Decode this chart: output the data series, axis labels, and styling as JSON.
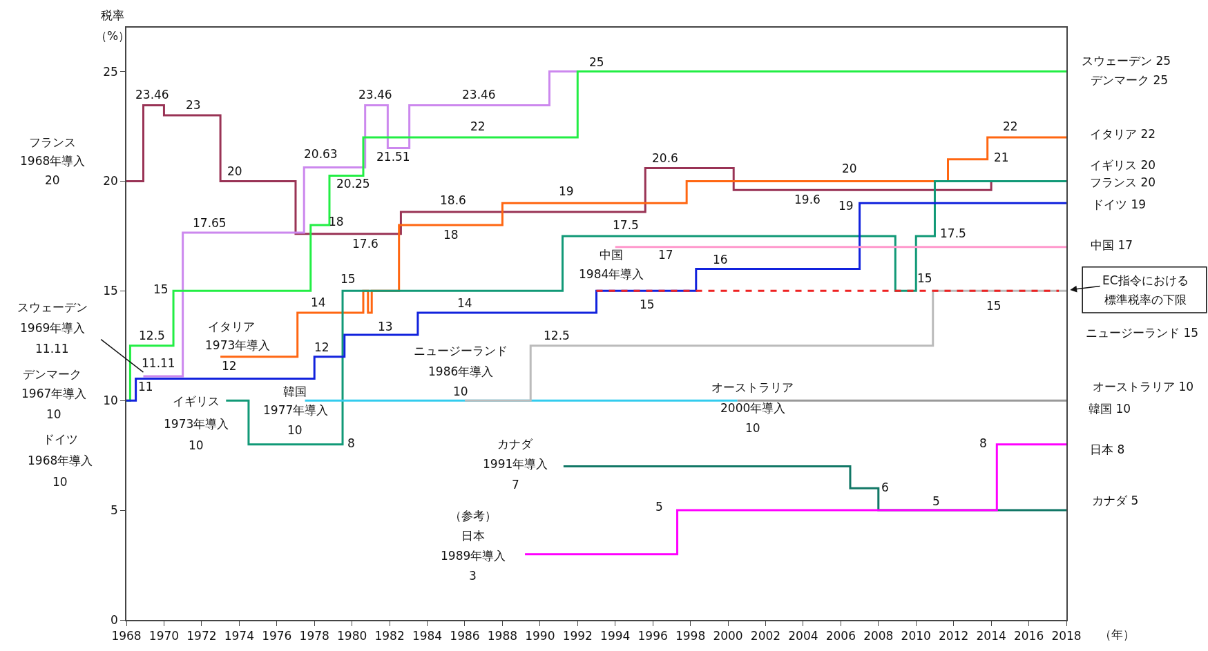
{
  "chart_data": {
    "type": "step",
    "ylabel": "税率",
    "xlabel": "（年）",
    "xlim": [
      1968,
      2018
    ],
    "ylim": [
      0,
      27
    ],
    "xticks": [
      1968,
      1970,
      1972,
      1974,
      1976,
      1978,
      1980,
      1982,
      1984,
      1986,
      1988,
      1990,
      1992,
      1994,
      1996,
      1998,
      2000,
      2002,
      2004,
      2006,
      2008,
      2010,
      2012,
      2014,
      2016,
      2018
    ],
    "yticks": [
      0,
      5,
      10,
      15,
      20,
      25
    ],
    "marker": "none",
    "series": [
      {
        "color": "#993355",
        "x": [
          1968,
          1968.9,
          1970,
          1973,
          1977,
          1982.6,
          1995.6,
          2000.3,
          2014,
          2018
        ],
        "values": [
          20,
          23.46,
          23,
          20,
          17.6,
          18.6,
          20.6,
          19.6,
          20,
          20
        ]
      },
      {
        "color": "#cc88ee",
        "x": [
          1968.9,
          1971,
          1977.45,
          1980.7,
          1981.9,
          1983.05,
          1990.5,
          1992
        ],
        "values": [
          11.11,
          17.65,
          20.63,
          23.46,
          21.51,
          23.46,
          25,
          25
        ]
      },
      {
        "color": "#22ee44",
        "x": [
          1968,
          1968.2,
          1970.5,
          1977.8,
          1978.8,
          1980.6,
          1992,
          2018
        ],
        "values": [
          10,
          12.5,
          15,
          18,
          20.25,
          22,
          25,
          25
        ]
      },
      {
        "color": "#ff6611",
        "x": [
          1973,
          1977.1,
          1980.6,
          1980.85,
          1981.05,
          1982.5,
          1988,
          1997.8,
          2011.7,
          2013.8,
          2018
        ],
        "values": [
          12,
          14,
          15,
          14,
          15,
          18,
          19,
          20,
          21,
          22,
          22
        ]
      },
      {
        "color": "#119977",
        "x": [
          1973.3,
          1974.5,
          1979.5,
          1991.2,
          2008.9,
          2010,
          2011,
          2018
        ],
        "values": [
          10,
          8,
          15,
          17.5,
          15,
          17.5,
          20,
          20
        ]
      },
      {
        "color": "#1122dd",
        "x": [
          1968,
          1968.5,
          1978,
          1979.6,
          1983.5,
          1993,
          1998.3,
          2007,
          2018
        ],
        "values": [
          10,
          11,
          12,
          13,
          14,
          15,
          16,
          19,
          19
        ]
      },
      {
        "color": "#ff99cc",
        "x": [
          1994,
          2018
        ],
        "values": [
          17,
          17
        ]
      },
      {
        "color": "#33ccee",
        "x": [
          1977.5,
          2000.5
        ],
        "values": [
          10,
          10
        ]
      },
      {
        "color": "#bbbbbb",
        "x": [
          1986,
          1989.5,
          2010.9,
          2018
        ],
        "values": [
          10,
          12.5,
          15,
          15
        ]
      },
      {
        "color": "#999999",
        "x": [
          2000.5,
          2018
        ],
        "values": [
          10,
          10
        ]
      },
      {
        "color": "#117766",
        "x": [
          1991.25,
          2006.5,
          2008,
          2018
        ],
        "values": [
          7,
          6,
          5,
          5
        ]
      },
      {
        "color": "#ff00ff",
        "x": [
          1989.2,
          1997.3,
          2014.3,
          2018
        ],
        "values": [
          3,
          5,
          8,
          8
        ]
      },
      {
        "color": "#ee2222",
        "type": "line",
        "line_style": "dashed",
        "x": [
          1993,
          2017.6
        ],
        "values": [
          15,
          15
        ]
      }
    ],
    "annotations": [
      "23.46",
      "23",
      "20",
      "20.63",
      "23.46",
      "23.46",
      "25",
      "22",
      "21.51",
      "20.25",
      "17.65",
      "18",
      "17.6",
      "18.6",
      "18",
      "19",
      "20.6",
      "20",
      "19.6",
      "19",
      "22",
      "21",
      "17.5",
      "17.5",
      "17",
      "16",
      "15",
      "15",
      "15",
      "15",
      "15",
      "14",
      "14",
      "13",
      "12.5",
      "12",
      "12.5",
      "11.11",
      "11",
      "12",
      "8",
      "6",
      "5",
      "5",
      "8",
      "フランス",
      "1968年導入",
      "20",
      "スウェーデン",
      "1969年導入",
      "11.11",
      "デンマーク",
      "1967年導入",
      "10",
      "ドイツ",
      "1968年導入",
      "10",
      "イタリア",
      "1973年導入",
      "イギリス",
      "1973年導入",
      "10",
      "韓国",
      "1977年導入",
      "10",
      "ニュージーランド",
      "1986年導入",
      "10",
      "オーストラリア",
      "2000年導入",
      "10",
      "中国",
      "1984年導入",
      "カナダ",
      "1991年導入",
      "7",
      "（参考）",
      "日本",
      "1989年導入",
      "3",
      "スウェーデン 25",
      "デンマーク 25",
      "イタリア 22",
      "イギリス 20",
      "フランス 20",
      "ドイツ 19",
      "中国 17",
      "ニュージーランド 15",
      "オーストラリア 10",
      "韓国 10",
      "日本 8",
      "カナダ 5",
      "EC指令における",
      "標準税率の下限",
      "（%）"
    ]
  }
}
